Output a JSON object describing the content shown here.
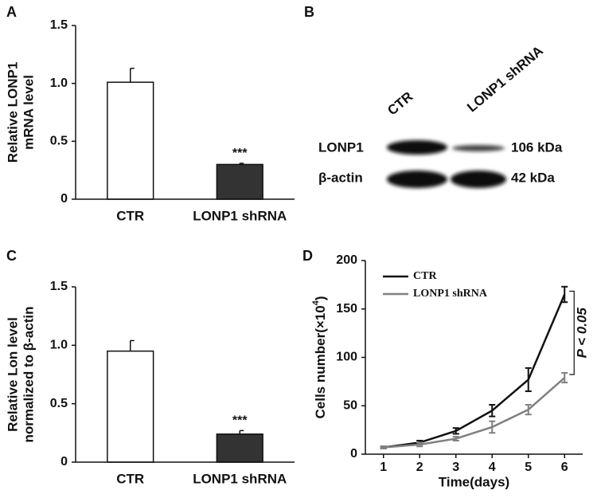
{
  "chart_data": [
    {
      "type": "bar",
      "label": "A",
      "ylabel": [
        "Relative LONP1",
        "mRNA level"
      ],
      "categories": [
        "CTR",
        "LONP1 shRNA"
      ],
      "values": [
        1.01,
        0.3
      ],
      "errors": [
        0.12,
        0.01
      ],
      "significance": [
        null,
        "***"
      ],
      "colors": [
        "#ffffff",
        "#333333"
      ],
      "ylim": [
        0,
        1.5
      ],
      "yticks": [
        {
          "value": 0,
          "label": "0"
        },
        {
          "value": 0.5,
          "label": "0.5"
        },
        {
          "value": 1,
          "label": "1.0"
        },
        {
          "value": 1.5,
          "label": "1.5"
        }
      ]
    },
    {
      "type": "bar",
      "label": "C",
      "ylabel": [
        "Relative Lon level",
        "normalized to β-actin"
      ],
      "categories": [
        "CTR",
        "LONP1 shRNA"
      ],
      "values": [
        0.95,
        0.24
      ],
      "errors": [
        0.09,
        0.03
      ],
      "significance": [
        null,
        "***"
      ],
      "colors": [
        "#ffffff",
        "#333333"
      ],
      "ylim": [
        0,
        1.5
      ],
      "yticks": [
        {
          "value": 0,
          "label": "0"
        },
        {
          "value": 0.5,
          "label": "0.5"
        },
        {
          "value": 1,
          "label": "1.0"
        },
        {
          "value": 1.5,
          "label": "1.5"
        }
      ]
    },
    {
      "type": "line",
      "label": "D",
      "ylabel": "Cells number(×10",
      "ylabel_sup": "4",
      "ylabel_end": ")",
      "xlabel": "Time(days)",
      "x": [
        1,
        2,
        3,
        4,
        5,
        6
      ],
      "series": [
        {
          "name": "CTR",
          "color": "#111111",
          "values": [
            7,
            12,
            24,
            45,
            77,
            165
          ],
          "errors": [
            1,
            2,
            3,
            6,
            12,
            8
          ]
        },
        {
          "name": "LONP1 shRNA",
          "color": "#808080",
          "values": [
            7,
            10,
            16,
            28,
            46,
            79
          ],
          "errors": [
            1,
            2,
            2,
            6,
            5,
            5
          ]
        }
      ],
      "annotation": "P < 0.05",
      "legend": "top-left",
      "xlim": [
        0.5,
        6.5
      ],
      "xticks": [
        1,
        2,
        3,
        4,
        5,
        6
      ],
      "ylim": [
        0,
        200
      ],
      "yticks": [
        0,
        50,
        100,
        150,
        200
      ]
    }
  ],
  "blot": {
    "label": "B",
    "lanes": [
      "CTR",
      "LONP1 shRNA"
    ],
    "rows": [
      {
        "protein": "LONP1",
        "size": "106 kDa"
      },
      {
        "protein": "β-actin",
        "size": "42 kDa"
      }
    ]
  }
}
